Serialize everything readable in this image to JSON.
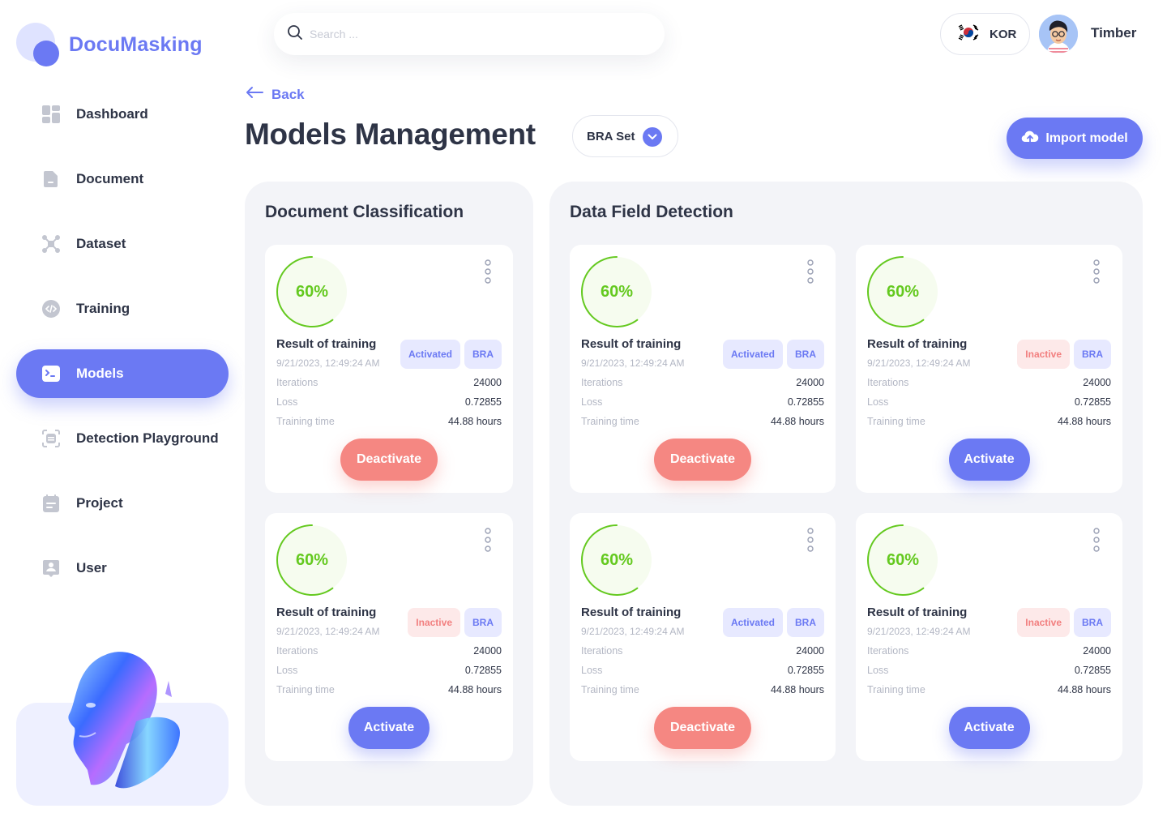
{
  "app": {
    "name": "DocuMasking"
  },
  "sidebar": {
    "items": [
      {
        "label": "Dashboard",
        "icon": "dashboard-icon"
      },
      {
        "label": "Document",
        "icon": "document-icon"
      },
      {
        "label": "Dataset",
        "icon": "dataset-icon"
      },
      {
        "label": "Training",
        "icon": "training-icon"
      },
      {
        "label": "Models",
        "icon": "models-icon",
        "active": true
      },
      {
        "label": "Detection Playground",
        "icon": "detection-icon"
      },
      {
        "label": "Project",
        "icon": "project-icon"
      },
      {
        "label": "User",
        "icon": "user-icon"
      }
    ]
  },
  "topbar": {
    "search_placeholder": "Search ...",
    "language": "KOR",
    "user_name": "Timber"
  },
  "header": {
    "back_label": "Back",
    "title": "Models Management",
    "set_selected": "BRA Set",
    "import_label": "Import model"
  },
  "colors": {
    "accent": "#6b79f3",
    "danger": "#f58782",
    "success": "#64c91f"
  },
  "panels": {
    "classification": {
      "title": "Document Classification",
      "cards": [
        {
          "progress": "60%",
          "title": "Result of training",
          "date": "9/21/2023, 12:49:24 AM",
          "status": "Activated",
          "region": "BRA",
          "iterations_label": "Iterations",
          "iterations": "24000",
          "loss_label": "Loss",
          "loss": "0.72855",
          "time_label": "Training time",
          "time": "44.88 hours",
          "action": "Deactivate"
        },
        {
          "progress": "60%",
          "title": "Result of training",
          "date": "9/21/2023, 12:49:24 AM",
          "status": "Inactive",
          "region": "BRA",
          "iterations_label": "Iterations",
          "iterations": "24000",
          "loss_label": "Loss",
          "loss": "0.72855",
          "time_label": "Training time",
          "time": "44.88 hours",
          "action": "Activate"
        }
      ]
    },
    "detection": {
      "title": "Data Field Detection",
      "cards": [
        {
          "progress": "60%",
          "title": "Result of training",
          "date": "9/21/2023, 12:49:24 AM",
          "status": "Activated",
          "region": "BRA",
          "iterations_label": "Iterations",
          "iterations": "24000",
          "loss_label": "Loss",
          "loss": "0.72855",
          "time_label": "Training time",
          "time": "44.88 hours",
          "action": "Deactivate"
        },
        {
          "progress": "60%",
          "title": "Result of training",
          "date": "9/21/2023, 12:49:24 AM",
          "status": "Inactive",
          "region": "BRA",
          "iterations_label": "Iterations",
          "iterations": "24000",
          "loss_label": "Loss",
          "loss": "0.72855",
          "time_label": "Training time",
          "time": "44.88 hours",
          "action": "Activate"
        },
        {
          "progress": "60%",
          "title": "Result of training",
          "date": "9/21/2023, 12:49:24 AM",
          "status": "Activated",
          "region": "BRA",
          "iterations_label": "Iterations",
          "iterations": "24000",
          "loss_label": "Loss",
          "loss": "0.72855",
          "time_label": "Training time",
          "time": "44.88 hours",
          "action": "Deactivate"
        },
        {
          "progress": "60%",
          "title": "Result of training",
          "date": "9/21/2023, 12:49:24 AM",
          "status": "Inactive",
          "region": "BRA",
          "iterations_label": "Iterations",
          "iterations": "24000",
          "loss_label": "Loss",
          "loss": "0.72855",
          "time_label": "Training time",
          "time": "44.88 hours",
          "action": "Activate"
        }
      ]
    }
  }
}
